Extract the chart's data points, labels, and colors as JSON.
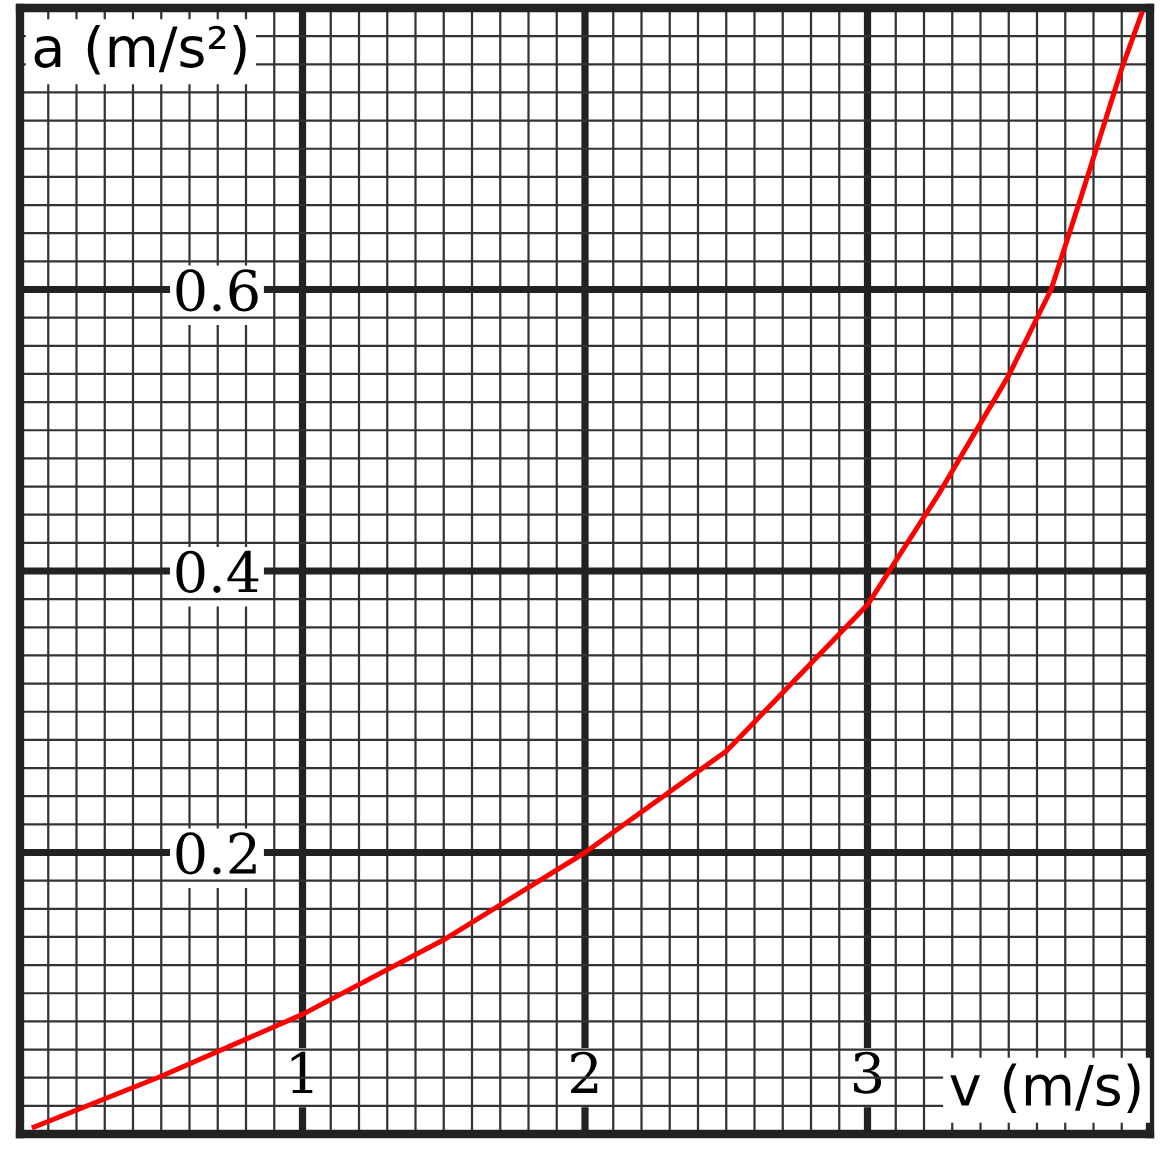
{
  "chart_data": {
    "type": "line",
    "xlabel": "v (m/s)",
    "ylabel": "a (m/s²)",
    "x": [
      0.05,
      0.5,
      1,
      1.5,
      2,
      2.5,
      3,
      3.25,
      3.5,
      3.65,
      3.75,
      3.9,
      3.97
    ],
    "series": [
      {
        "color": "#ff0000",
        "values": [
          0.005,
          0.041,
          0.085,
          0.138,
          0.2,
          0.272,
          0.376,
          0.454,
          0.539,
          0.6,
          0.662,
          0.757,
          0.796
        ]
      }
    ],
    "xlim": [
      0,
      4
    ],
    "ylim": [
      0,
      0.8
    ],
    "xticks": [
      1,
      2,
      3
    ],
    "yticks": [
      0.2,
      0.4,
      0.6
    ],
    "grid": true
  }
}
